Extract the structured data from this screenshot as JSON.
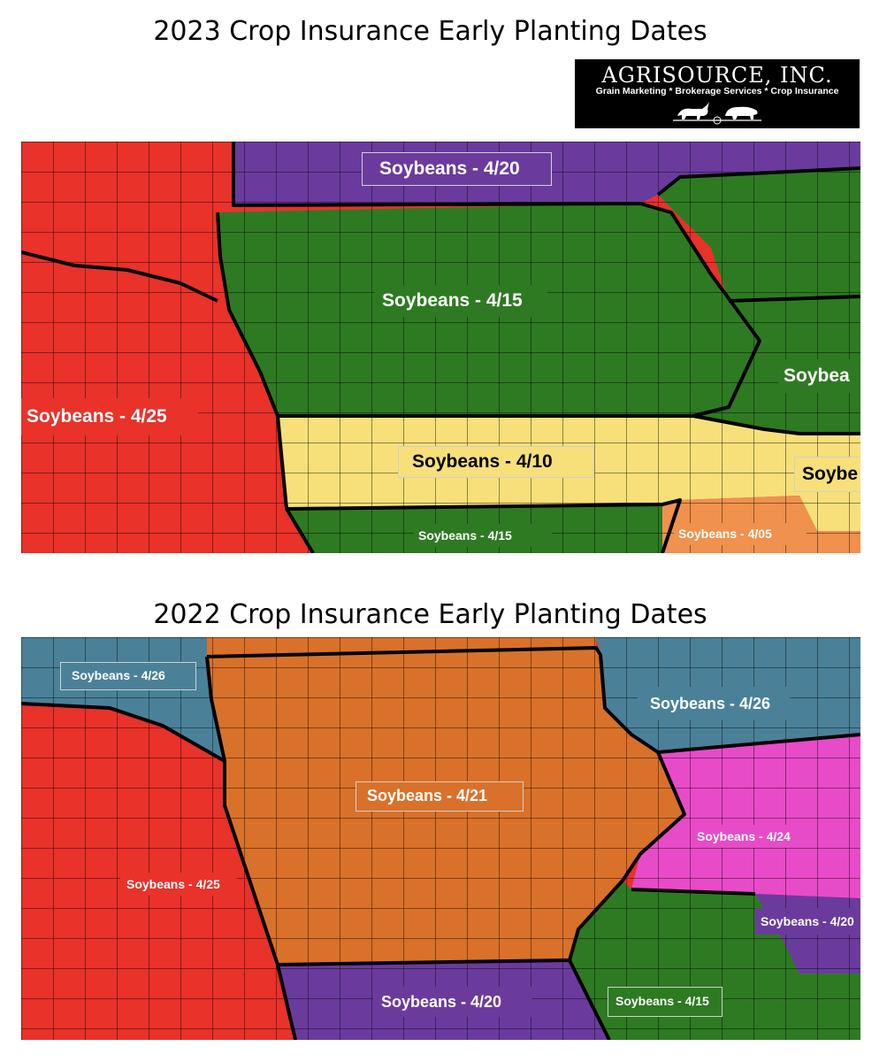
{
  "top": {
    "title": "2023 Crop Insurance Early Planting Dates",
    "labels": {
      "nw": "Soybeans - 4/20",
      "center": "Soybeans - 4/15",
      "west": "Soybeans - 4/25",
      "south_band": "Soybeans - 4/10",
      "south": "Soybeans - 4/15",
      "se": "Soybeans - 4/05",
      "east": "Soybea",
      "east_yellow": "Soybe"
    },
    "colors": {
      "red": "#e8322a",
      "purple": "#6a3b9d",
      "green": "#2e7a22",
      "yellow": "#f7e07a",
      "orange": "#f0914d"
    }
  },
  "logo": {
    "name": "AGRISOURCE, INC.",
    "tagline": "Grain Marketing * Brokerage Services * Crop Insurance"
  },
  "bottom": {
    "title": "2022 Crop Insurance Early Planting Dates",
    "labels": {
      "nw": "Soybeans - 4/26",
      "ne": "Soybeans - 4/26",
      "center": "Soybeans - 4/21",
      "west": "Soybeans - 4/25",
      "east": "Soybeans - 4/24",
      "se": "Soybeans - 4/20",
      "south": "Soybeans - 4/20",
      "ssw": "Soybeans - 4/15"
    },
    "colors": {
      "teal": "#4a8199",
      "red": "#e8322a",
      "orange": "#d9712a",
      "magenta": "#e84bc8",
      "purple": "#6a3b9d",
      "green": "#2e7a22"
    }
  }
}
